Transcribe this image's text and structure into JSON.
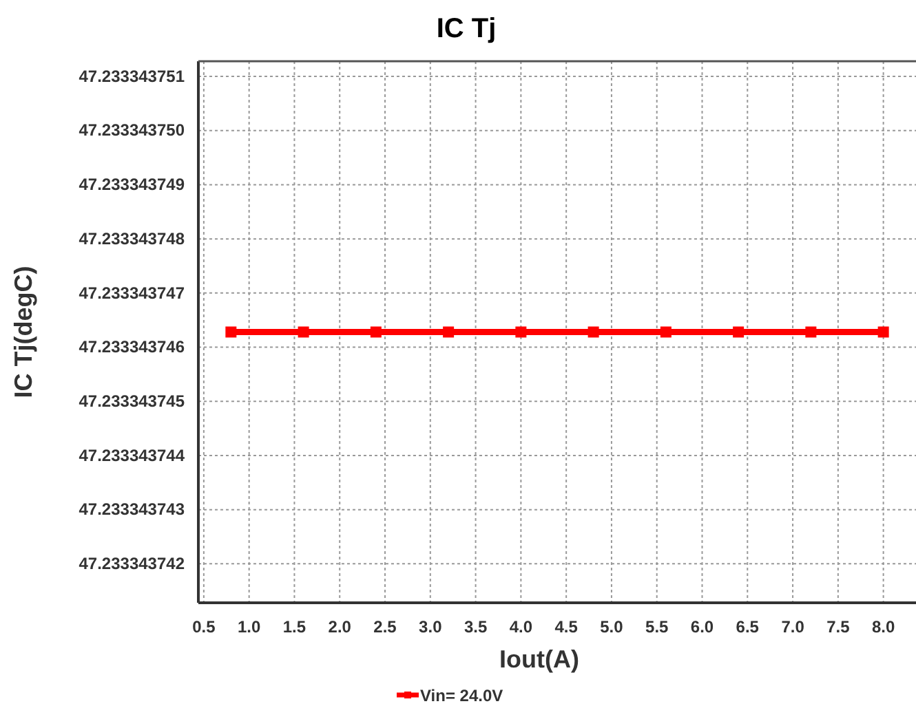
{
  "chart_data": {
    "type": "line",
    "title": "IC Tj",
    "xlabel": "Iout(A)",
    "ylabel": "IC Tj(degC)",
    "x": [
      0.8,
      1.6,
      2.4,
      3.2,
      4.0,
      4.8,
      5.6,
      6.4,
      7.2,
      8.0
    ],
    "series": [
      {
        "name": "Vin= 24.0V",
        "color": "#ff0000",
        "values": [
          47.23334374628,
          47.23334374628,
          47.23334374628,
          47.23334374628,
          47.23334374628,
          47.23334374628,
          47.23334374628,
          47.23334374628,
          47.23334374628,
          47.23334374628
        ]
      }
    ],
    "xlim": [
      0.44,
      8.36
    ],
    "xticks": [
      0.5,
      {
        "value": 1,
        "label": "1.0"
      },
      1.5,
      {
        "value": 2,
        "label": "2.0"
      },
      2.5,
      {
        "value": 3,
        "label": "3.0"
      },
      3.5,
      {
        "value": 4,
        "label": "4.0"
      },
      4.5,
      {
        "value": 5,
        "label": "5.0"
      },
      5.5,
      {
        "value": 6,
        "label": "6.0"
      },
      6.5,
      {
        "value": 7,
        "label": "7.0"
      },
      7.5,
      {
        "value": 8,
        "label": "8.0"
      }
    ],
    "ylim": [
      47.23334374128,
      47.23334375128
    ],
    "yticks": [
      47.233343742,
      47.233343743,
      47.233343744,
      47.233343745,
      47.233343746,
      47.233343747,
      47.233343748,
      47.233343749,
      {
        "value": 47.23334375,
        "label": "47.233343750"
      },
      47.233343751
    ],
    "grid": true,
    "legend": "bottom",
    "marker": "square",
    "line_style": "solid"
  }
}
